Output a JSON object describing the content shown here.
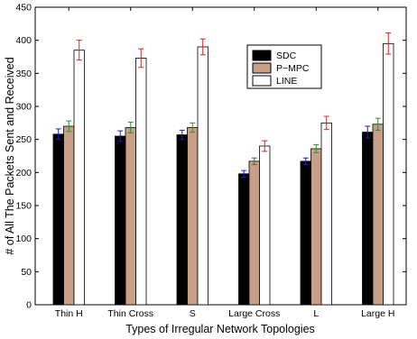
{
  "chart_data": {
    "type": "bar",
    "xlabel": "Types of Irregular Network Topologies",
    "ylabel": "# of All The Packets Sent and Received",
    "ylim": [
      0,
      450
    ],
    "yticks": [
      0,
      50,
      100,
      150,
      200,
      250,
      300,
      350,
      400,
      450
    ],
    "categories": [
      "Thin H",
      "Thin Cross",
      "S",
      "Large Cross",
      "L",
      "Large H"
    ],
    "legend_position": "upper-right",
    "grid": false,
    "series": [
      {
        "name": "SDC",
        "fill": "#000000",
        "error_color": "#1f1fbf",
        "values": [
          258,
          255,
          257,
          198,
          217,
          261
        ],
        "errors": [
          8,
          8,
          7,
          5,
          5,
          9
        ]
      },
      {
        "name": "P−MPC",
        "fill": "#c8a08a",
        "error_color": "#2e8b2e",
        "values": [
          270,
          268,
          268,
          217,
          236,
          273
        ],
        "errors": [
          8,
          8,
          7,
          5,
          6,
          9
        ]
      },
      {
        "name": "LINE",
        "fill": "#ffffff",
        "error_color": "#e02020",
        "values": [
          385,
          373,
          390,
          240,
          275,
          395
        ],
        "errors": [
          15,
          14,
          12,
          8,
          10,
          16
        ]
      }
    ]
  }
}
